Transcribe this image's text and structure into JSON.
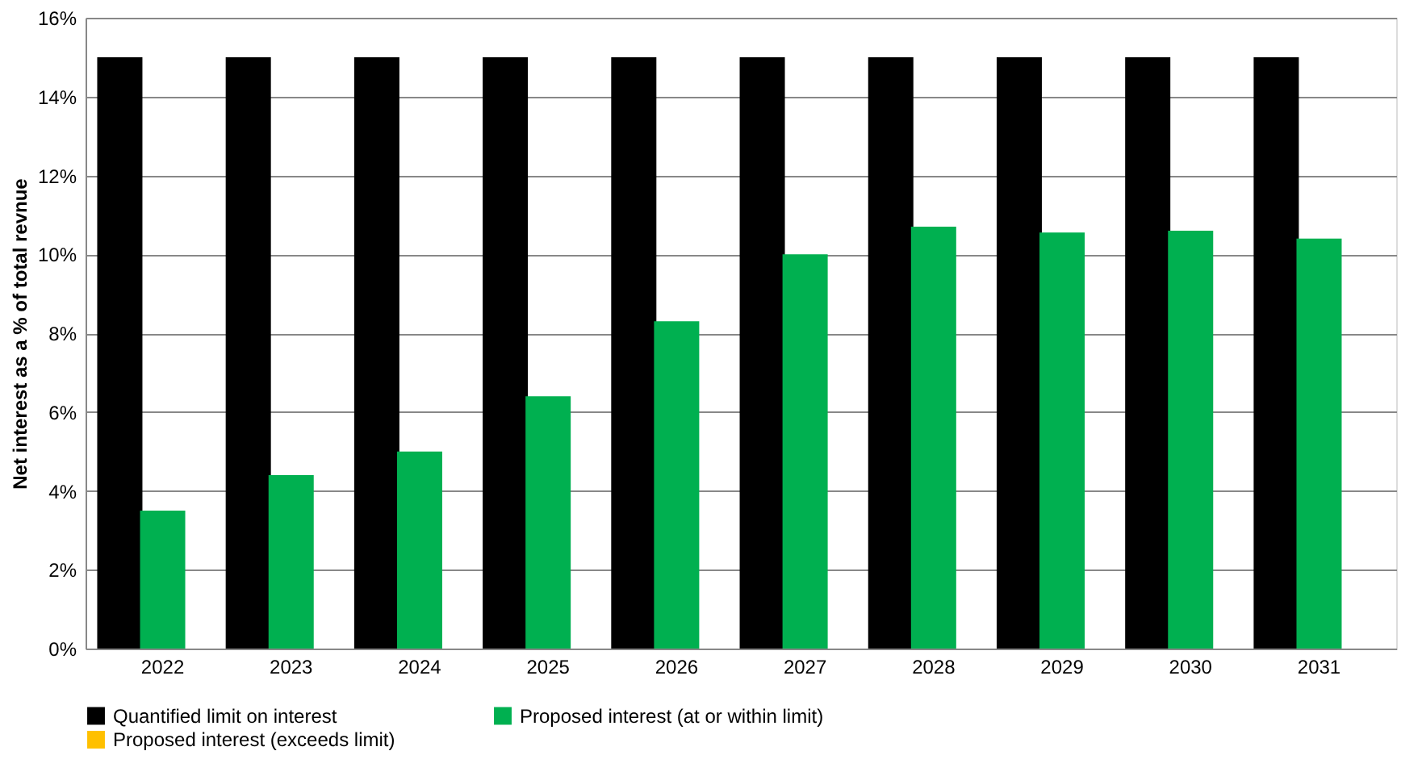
{
  "chart_data": {
    "type": "bar",
    "ylabel": "Net interest as a % of total revnue",
    "categories": [
      "2022",
      "2023",
      "2024",
      "2025",
      "2026",
      "2027",
      "2028",
      "2029",
      "2030",
      "2031"
    ],
    "series": [
      {
        "name": "Quantified limit on interest",
        "color": "#000000",
        "values": [
          15,
          15,
          15,
          15,
          15,
          15,
          15,
          15,
          15,
          15
        ]
      },
      {
        "name": "Proposed interest (at or within limit)",
        "color": "#00b050",
        "values": [
          3.5,
          4.4,
          5.0,
          6.4,
          8.3,
          10.0,
          10.7,
          10.55,
          10.6,
          10.4
        ]
      },
      {
        "name": "Proposed interest (exceeds limit)",
        "color": "#ffc000",
        "values": [
          null,
          null,
          null,
          null,
          null,
          null,
          null,
          null,
          null,
          null
        ]
      }
    ],
    "ylim": [
      0,
      16
    ],
    "yticks": [
      {
        "value": 0,
        "label": "0%"
      },
      {
        "value": 2,
        "label": "2%"
      },
      {
        "value": 4,
        "label": "4%"
      },
      {
        "value": 6,
        "label": "6%"
      },
      {
        "value": 8,
        "label": "8%"
      },
      {
        "value": 10,
        "label": "10%"
      },
      {
        "value": 12,
        "label": "12%"
      },
      {
        "value": 14,
        "label": "14%"
      },
      {
        "value": 16,
        "label": "16%"
      }
    ],
    "grid": "y",
    "legend": "bottom"
  }
}
